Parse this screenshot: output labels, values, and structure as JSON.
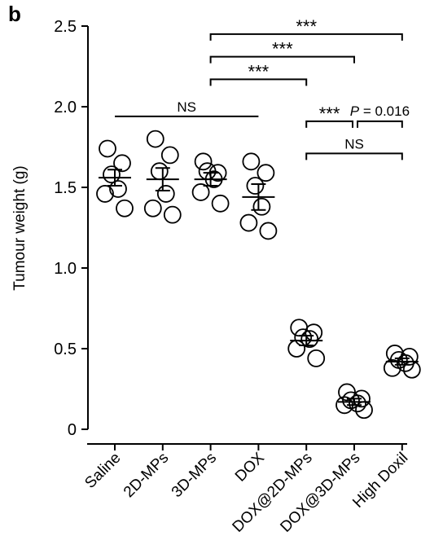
{
  "panel_label": "b",
  "chart_data": {
    "type": "scatter",
    "title": "",
    "xlabel": "",
    "ylabel": "Tumour weight (g)",
    "ylim": [
      0,
      2.5
    ],
    "yticks": [
      "0",
      "0.5",
      "1.0",
      "1.5",
      "2.0",
      "2.5"
    ],
    "yticks_values": [
      0,
      0.5,
      1.0,
      1.5,
      2.0,
      2.5
    ],
    "grid": false,
    "categories": [
      "Saline",
      "2D-MPs",
      "3D-MPs",
      "DOX",
      "DOX@2D-MPs",
      "DOX@3D-MPs",
      "High Doxil"
    ],
    "groups": [
      {
        "category": "Saline",
        "points": [
          1.74,
          1.65,
          1.58,
          1.49,
          1.46,
          1.37
        ],
        "mean": 1.56,
        "sem": 0.05
      },
      {
        "category": "2D-MPs",
        "points": [
          1.8,
          1.7,
          1.6,
          1.46,
          1.37,
          1.33
        ],
        "mean": 1.55,
        "sem": 0.07
      },
      {
        "category": "3D-MPs",
        "points": [
          1.66,
          1.59,
          1.6,
          1.55,
          1.47,
          1.4
        ],
        "mean": 1.55,
        "sem": 0.04
      },
      {
        "category": "DOX",
        "points": [
          1.66,
          1.59,
          1.51,
          1.38,
          1.28,
          1.23
        ],
        "mean": 1.44,
        "sem": 0.08
      },
      {
        "category": "DOX@2D-MPs",
        "points": [
          0.63,
          0.6,
          0.57,
          0.56,
          0.5,
          0.44
        ],
        "mean": 0.55,
        "sem": 0.03
      },
      {
        "category": "DOX@3D-MPs",
        "points": [
          0.23,
          0.19,
          0.18,
          0.16,
          0.15,
          0.12
        ],
        "mean": 0.17,
        "sem": 0.02
      },
      {
        "category": "High Doxil",
        "points": [
          0.47,
          0.45,
          0.43,
          0.41,
          0.38,
          0.37
        ],
        "mean": 0.42,
        "sem": 0.02
      }
    ],
    "annotations": [
      {
        "from": 2,
        "to": 6,
        "label": "***",
        "level": 2.45
      },
      {
        "from": 2,
        "to": 5,
        "label": "***",
        "level": 2.31
      },
      {
        "from": 2,
        "to": 4,
        "label": "***",
        "level": 2.17
      },
      {
        "from": 0,
        "to": 3,
        "label": "NS",
        "level": 1.94,
        "style": "flat"
      },
      {
        "from": 4,
        "to": 5,
        "label": "***",
        "level": 1.91
      },
      {
        "from": 5,
        "to": 6,
        "label": "P = 0.016",
        "level": 1.91
      },
      {
        "from": 4,
        "to": 6,
        "label": "NS",
        "level": 1.71
      }
    ]
  }
}
